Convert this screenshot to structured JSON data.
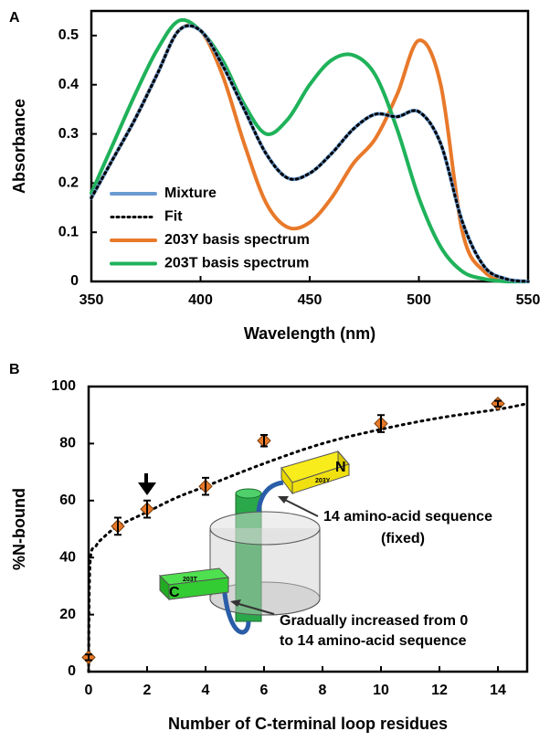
{
  "chart_data": [
    {
      "type": "line",
      "label": "A",
      "x_label": "Wavelength (nm)",
      "y_label": "Absorbance",
      "x": [
        350,
        360,
        370,
        380,
        390,
        400,
        410,
        420,
        430,
        440,
        450,
        460,
        470,
        480,
        490,
        500,
        510,
        520,
        530,
        540,
        550
      ],
      "series": [
        {
          "name": "Mixture",
          "color": "#6a9bd1",
          "style": "solid",
          "values": [
            0.17,
            0.25,
            0.33,
            0.42,
            0.51,
            0.51,
            0.44,
            0.35,
            0.26,
            0.21,
            0.22,
            0.26,
            0.31,
            0.34,
            0.335,
            0.345,
            0.28,
            0.12,
            0.03,
            0.005,
            0
          ]
        },
        {
          "name": "Fit",
          "color": "#000000",
          "style": "dotted",
          "values": [
            0.17,
            0.25,
            0.33,
            0.42,
            0.51,
            0.51,
            0.44,
            0.35,
            0.26,
            0.21,
            0.22,
            0.26,
            0.31,
            0.34,
            0.335,
            0.345,
            0.28,
            0.12,
            0.03,
            0.005,
            0
          ]
        },
        {
          "name": "203Y basis spectrum",
          "color": "#e8792a",
          "style": "solid",
          "values": [
            0.17,
            0.25,
            0.33,
            0.42,
            0.51,
            0.51,
            0.42,
            0.28,
            0.16,
            0.11,
            0.12,
            0.17,
            0.24,
            0.29,
            0.38,
            0.49,
            0.4,
            0.1,
            0.02,
            0.003,
            0
          ]
        },
        {
          "name": "203T basis spectrum",
          "color": "#1fb25a",
          "style": "solid",
          "values": [
            0.18,
            0.28,
            0.38,
            0.47,
            0.53,
            0.51,
            0.45,
            0.36,
            0.3,
            0.33,
            0.4,
            0.45,
            0.46,
            0.42,
            0.31,
            0.17,
            0.07,
            0.02,
            0.005,
            0,
            0
          ]
        }
      ],
      "xlim": [
        350,
        550
      ],
      "xticks": [
        350,
        400,
        450,
        500,
        550
      ],
      "ylim": [
        0,
        0.55
      ],
      "yticks": [
        0,
        0.1,
        0.2,
        0.3,
        0.4,
        0.5
      ],
      "legend": "lower-left"
    },
    {
      "type": "scatter",
      "label": "B",
      "x_label": "Number of C-terminal loop residues",
      "y_label": "%N-bound",
      "x": [
        0,
        1,
        2,
        4,
        6,
        10,
        14
      ],
      "values": [
        5,
        51,
        57,
        65,
        81,
        87,
        94
      ],
      "errors": [
        1,
        3,
        3,
        3,
        2,
        3,
        1
      ],
      "color": "#e8792a",
      "fit_x": [
        0,
        0.05,
        0.25,
        0.5,
        1,
        2,
        3,
        4,
        6,
        8,
        10,
        12,
        14,
        15
      ],
      "fit_values": [
        0,
        38,
        44,
        47,
        51,
        56,
        61,
        65,
        73,
        80,
        85,
        89,
        92,
        94
      ],
      "xlim": [
        0,
        15
      ],
      "xticks": [
        0,
        2,
        4,
        6,
        8,
        10,
        12,
        14
      ],
      "ylim": [
        0,
        100
      ],
      "yticks": [
        0,
        20,
        40,
        60,
        80,
        100
      ],
      "annotations": [
        "14 amino-acid sequence",
        "(fixed)",
        "Gradually increased from 0",
        "to 14 amino-acid sequence"
      ],
      "diagram_labels": [
        "N",
        "203Y",
        "203T",
        "C"
      ]
    }
  ]
}
